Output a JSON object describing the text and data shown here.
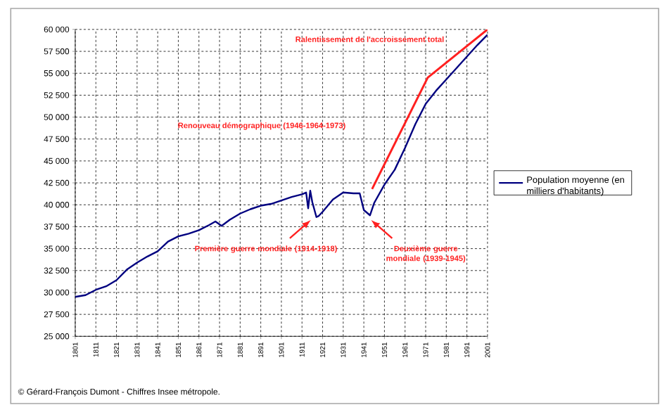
{
  "chart_data": {
    "type": "line",
    "x": [
      1801,
      1806,
      1811,
      1816,
      1821,
      1826,
      1831,
      1836,
      1841,
      1846,
      1851,
      1856,
      1861,
      1866,
      1869,
      1872,
      1876,
      1881,
      1886,
      1891,
      1896,
      1901,
      1906,
      1911,
      1913,
      1914,
      1915,
      1916,
      1918,
      1919,
      1921,
      1926,
      1931,
      1936,
      1939,
      1941,
      1944,
      1946,
      1951,
      1956,
      1961,
      1966,
      1971,
      1976,
      1981,
      1986,
      1991,
      1996,
      2001
    ],
    "series": [
      {
        "name": "Population moyenne (en milliers d'habitants)",
        "color": "#000080",
        "values": [
          29500,
          29700,
          30300,
          30700,
          31400,
          32600,
          33400,
          34100,
          34700,
          35800,
          36400,
          36700,
          37100,
          37700,
          38100,
          37600,
          38300,
          39000,
          39500,
          39900,
          40100,
          40500,
          40900,
          41200,
          41400,
          39600,
          41600,
          40300,
          38600,
          38700,
          39200,
          40600,
          41400,
          41300,
          41300,
          39400,
          38800,
          40200,
          42300,
          44000,
          46500,
          49200,
          51500,
          53000,
          54300,
          55600,
          56900,
          58200,
          59400
        ]
      },
      {
        "type": "line",
        "color": "#ff2020",
        "x": [
          1945,
          1972,
          2001
        ],
        "values": [
          41800,
          54500,
          60000
        ]
      }
    ],
    "annotations": [
      "Ralentissement de l'accroissement total",
      "Renouveau démographique (1946-1964-1973)",
      "Première guerre mondiale (1914-1918)",
      "Deuxième guerre mondiale (1939-1945)",
      "© Gérard-François Dumont - Chiffres Insee métropole."
    ],
    "xlim": [
      1801,
      2001
    ],
    "xticks": [
      1801,
      1811,
      1821,
      1831,
      1841,
      1851,
      1861,
      1871,
      1881,
      1891,
      1901,
      1911,
      1921,
      1931,
      1941,
      1951,
      1961,
      1971,
      1981,
      1991,
      2001
    ],
    "ylim": [
      25000,
      60000
    ],
    "yticks": [
      {
        "value": 25000,
        "label": "25 000"
      },
      {
        "value": 27500,
        "label": "27 500"
      },
      {
        "value": 30000,
        "label": "30 000"
      },
      {
        "value": 32500,
        "label": "32 500"
      },
      {
        "value": 35000,
        "label": "35 000"
      },
      {
        "value": 37500,
        "label": "37 500"
      },
      {
        "value": 40000,
        "label": "40 000"
      },
      {
        "value": 42500,
        "label": "42 500"
      },
      {
        "value": 45000,
        "label": "45 000"
      },
      {
        "value": 47500,
        "label": "47 500"
      },
      {
        "value": 50000,
        "label": "50 000"
      },
      {
        "value": 52500,
        "label": "52 500"
      },
      {
        "value": 55000,
        "label": "55 000"
      },
      {
        "value": 57500,
        "label": "57 500"
      },
      {
        "value": 60000,
        "label": "60 000"
      }
    ],
    "grid": true,
    "legend": "right",
    "marker": "none",
    "line_style": "solid"
  }
}
